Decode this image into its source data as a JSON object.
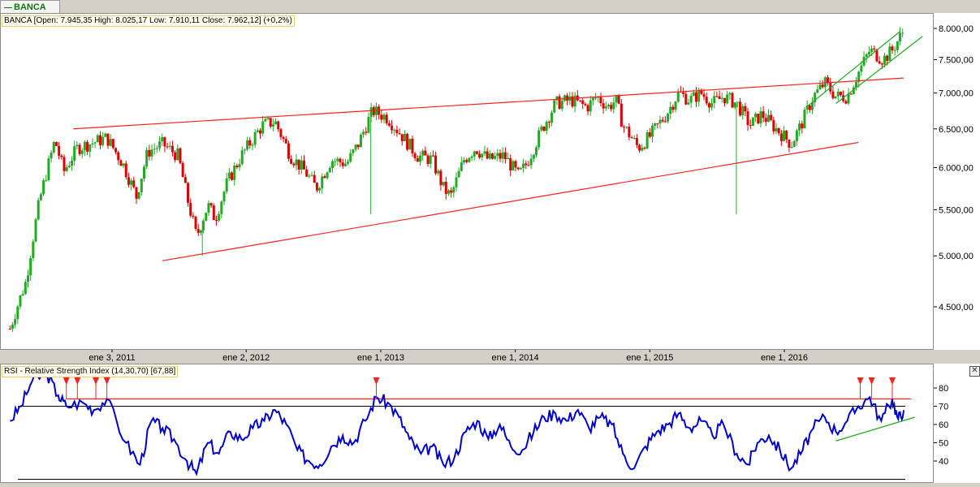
{
  "tab": {
    "label": "BANCA"
  },
  "price_info": "BANCA [Open: 7.945,35  High: 8.025,17  Low: 7.910,11  Close: 7.962,12] (+0,2%)",
  "rsi_info": "RSI - Relative Strength Index (14,30,70) [67,88]",
  "colors": {
    "up": "#22aa22",
    "down": "#dd0000",
    "trend": "#ff2020",
    "support": "#22aa22",
    "rsi": "#0000cc"
  },
  "chart_data": [
    {
      "type": "candlestick",
      "series": [
        {
          "name": "BANCA"
        }
      ],
      "ylim": [
        4200,
        8200
      ],
      "y_ticks": [
        {
          "value": 8000,
          "label": "8.000,00"
        },
        {
          "value": 7500,
          "label": "7.500,00"
        },
        {
          "value": 7000,
          "label": "7.000,00"
        },
        {
          "value": 6500,
          "label": "6.500,00"
        },
        {
          "value": 6000,
          "label": "6.000,00"
        },
        {
          "value": 5500,
          "label": "5.500,00"
        },
        {
          "value": 5000,
          "label": "5.000,00"
        },
        {
          "value": 4500,
          "label": "4.500,00"
        }
      ],
      "x_ticks": [
        {
          "date": "2011-01-03",
          "label": "ene 3, 2011"
        },
        {
          "date": "2012-01-02",
          "label": "ene 2, 2012"
        },
        {
          "date": "2013-01-01",
          "label": "ene 1, 2013"
        },
        {
          "date": "2014-01-01",
          "label": "ene 1, 2014"
        },
        {
          "date": "2015-01-01",
          "label": "ene 1, 2015"
        },
        {
          "date": "2016-01-01",
          "label": "ene 1, 2016"
        }
      ],
      "close_path": [
        [
          "2010-04-01",
          4300
        ],
        [
          "2010-05-15",
          4750
        ],
        [
          "2010-06-20",
          5600
        ],
        [
          "2010-08-01",
          6350
        ],
        [
          "2010-08-25",
          5950
        ],
        [
          "2010-10-01",
          6250
        ],
        [
          "2010-12-20",
          6380
        ],
        [
          "2011-02-01",
          6050
        ],
        [
          "2011-03-10",
          5650
        ],
        [
          "2011-04-10",
          6200
        ],
        [
          "2011-05-20",
          6300
        ],
        [
          "2011-07-01",
          6150
        ],
        [
          "2011-07-25",
          5650
        ],
        [
          "2011-08-20",
          5200
        ],
        [
          "2011-09-20",
          5550
        ],
        [
          "2011-10-10",
          5400
        ],
        [
          "2011-11-10",
          5800
        ],
        [
          "2011-12-20",
          6150
        ],
        [
          "2012-02-15",
          6550
        ],
        [
          "2012-03-20",
          6600
        ],
        [
          "2012-05-01",
          6150
        ],
        [
          "2012-06-10",
          5950
        ],
        [
          "2012-07-10",
          5750
        ],
        [
          "2012-08-20",
          6100
        ],
        [
          "2012-10-01",
          6050
        ],
        [
          "2012-11-01",
          6300
        ],
        [
          "2012-12-10",
          6750
        ],
        [
          "2013-01-20",
          6650
        ],
        [
          "2013-03-01",
          6400
        ],
        [
          "2013-04-10",
          6150
        ],
        [
          "2013-05-20",
          6100
        ],
        [
          "2013-06-20",
          5750
        ],
        [
          "2013-07-10",
          5650
        ],
        [
          "2013-08-15",
          6100
        ],
        [
          "2013-09-15",
          6250
        ],
        [
          "2013-10-20",
          6100
        ],
        [
          "2013-12-01",
          6150
        ],
        [
          "2014-01-10",
          5900
        ],
        [
          "2014-02-01",
          6050
        ],
        [
          "2014-03-15",
          6500
        ],
        [
          "2014-04-20",
          6850
        ],
        [
          "2014-06-01",
          6900
        ],
        [
          "2014-07-15",
          6800
        ],
        [
          "2014-08-10",
          6950
        ],
        [
          "2014-09-10",
          6800
        ],
        [
          "2014-10-01",
          6900
        ],
        [
          "2014-10-20",
          6550
        ],
        [
          "2014-12-01",
          6250
        ],
        [
          "2015-01-01",
          6400
        ],
        [
          "2015-02-15",
          6700
        ],
        [
          "2015-03-20",
          7000
        ],
        [
          "2015-04-20",
          6900
        ],
        [
          "2015-05-20",
          7000
        ],
        [
          "2015-06-20",
          6850
        ],
        [
          "2015-07-20",
          6950
        ],
        [
          "2015-08-25",
          6850
        ],
        [
          "2015-09-30",
          6550
        ],
        [
          "2015-11-01",
          6700
        ],
        [
          "2015-12-10",
          6500
        ],
        [
          "2016-01-20",
          6300
        ],
        [
          "2016-02-15",
          6550
        ],
        [
          "2016-03-20",
          6950
        ],
        [
          "2016-04-20",
          7150
        ],
        [
          "2016-05-20",
          6950
        ],
        [
          "2016-06-20",
          6950
        ],
        [
          "2016-07-20",
          7300
        ],
        [
          "2016-08-20",
          7650
        ],
        [
          "2016-09-25",
          7500
        ],
        [
          "2016-10-20",
          7650
        ],
        [
          "2016-11-20",
          7962
        ]
      ],
      "spikes": [
        {
          "date": "2011-09-05",
          "low": 5000
        },
        {
          "date": "2012-12-05",
          "low": 5450
        },
        {
          "date": "2015-08-24",
          "low": 5450
        }
      ],
      "trend_lines": [
        {
          "name": "resistance",
          "from": [
            "2010-09-20",
            6500
          ],
          "to": [
            "2016-11-20",
            7220
          ]
        },
        {
          "name": "support",
          "from": [
            "2011-05-20",
            4950
          ],
          "to": [
            "2016-07-20",
            6320
          ]
        },
        {
          "name": "channel-upper",
          "from": [
            "2016-03-01",
            6800
          ],
          "to": [
            "2016-11-10",
            7950
          ]
        },
        {
          "name": "channel-lower",
          "from": [
            "2016-05-20",
            6850
          ],
          "to": [
            "2017-01-10",
            7870
          ]
        }
      ]
    },
    {
      "type": "line",
      "series": [
        {
          "name": "RSI",
          "period": 14
        }
      ],
      "ylim": [
        30,
        90
      ],
      "y_ticks": [
        80,
        70,
        60,
        50,
        40
      ],
      "levels": [
        30,
        70
      ],
      "value": 67.88,
      "points": [
        [
          "2010-04-01",
          62
        ],
        [
          "2010-05-01",
          70
        ],
        [
          "2010-06-01",
          84
        ],
        [
          "2010-07-10",
          88
        ],
        [
          "2010-08-10",
          76
        ],
        [
          "2010-09-01",
          70
        ],
        [
          "2010-10-15",
          72
        ],
        [
          "2010-11-15",
          68
        ],
        [
          "2010-12-20",
          74
        ],
        [
          "2011-02-10",
          50
        ],
        [
          "2011-03-20",
          38
        ],
        [
          "2011-04-20",
          62
        ],
        [
          "2011-05-20",
          58
        ],
        [
          "2011-06-20",
          52
        ],
        [
          "2011-07-25",
          40
        ],
        [
          "2011-08-20",
          33
        ],
        [
          "2011-09-20",
          50
        ],
        [
          "2011-10-20",
          44
        ],
        [
          "2011-11-20",
          56
        ],
        [
          "2011-12-20",
          52
        ],
        [
          "2012-01-20",
          58
        ],
        [
          "2012-02-20",
          62
        ],
        [
          "2012-03-20",
          68
        ],
        [
          "2012-04-20",
          60
        ],
        [
          "2012-05-20",
          46
        ],
        [
          "2012-06-20",
          40
        ],
        [
          "2012-07-20",
          38
        ],
        [
          "2012-08-20",
          48
        ],
        [
          "2012-09-20",
          54
        ],
        [
          "2012-10-20",
          50
        ],
        [
          "2012-11-20",
          62
        ],
        [
          "2012-12-20",
          75
        ],
        [
          "2013-01-20",
          72
        ],
        [
          "2013-02-20",
          64
        ],
        [
          "2013-03-20",
          52
        ],
        [
          "2013-04-20",
          44
        ],
        [
          "2013-05-20",
          48
        ],
        [
          "2013-06-20",
          38
        ],
        [
          "2013-07-20",
          42
        ],
        [
          "2013-08-20",
          56
        ],
        [
          "2013-09-20",
          62
        ],
        [
          "2013-10-20",
          52
        ],
        [
          "2013-11-20",
          60
        ],
        [
          "2013-12-20",
          48
        ],
        [
          "2014-01-20",
          46
        ],
        [
          "2014-02-20",
          56
        ],
        [
          "2014-03-20",
          64
        ],
        [
          "2014-04-20",
          66
        ],
        [
          "2014-05-20",
          62
        ],
        [
          "2014-06-20",
          68
        ],
        [
          "2014-07-20",
          58
        ],
        [
          "2014-08-20",
          64
        ],
        [
          "2014-09-20",
          60
        ],
        [
          "2014-10-20",
          44
        ],
        [
          "2014-11-20",
          36
        ],
        [
          "2014-12-20",
          48
        ],
        [
          "2015-01-20",
          56
        ],
        [
          "2015-02-20",
          60
        ],
        [
          "2015-03-20",
          66
        ],
        [
          "2015-04-20",
          58
        ],
        [
          "2015-05-20",
          62
        ],
        [
          "2015-06-20",
          54
        ],
        [
          "2015-07-20",
          60
        ],
        [
          "2015-08-25",
          44
        ],
        [
          "2015-09-25",
          38
        ],
        [
          "2015-10-20",
          50
        ],
        [
          "2015-11-20",
          54
        ],
        [
          "2015-12-20",
          46
        ],
        [
          "2016-01-20",
          36
        ],
        [
          "2016-02-20",
          46
        ],
        [
          "2016-03-20",
          58
        ],
        [
          "2016-04-20",
          64
        ],
        [
          "2016-05-20",
          56
        ],
        [
          "2016-06-20",
          62
        ],
        [
          "2016-07-20",
          70
        ],
        [
          "2016-08-20",
          75
        ],
        [
          "2016-09-20",
          62
        ],
        [
          "2016-10-20",
          74
        ],
        [
          "2016-11-05",
          63
        ],
        [
          "2016-11-20",
          67.88
        ]
      ],
      "lines": [
        {
          "name": "rsi-resistance",
          "from": [
            "2010-09-01",
            74
          ],
          "to": [
            "2016-12-10",
            74
          ]
        },
        {
          "name": "rsi-support",
          "from": [
            "2016-05-20",
            51
          ],
          "to": [
            "2016-12-20",
            64
          ]
        }
      ],
      "markers": [
        "2010-09-01",
        "2010-10-01",
        "2010-11-20",
        "2010-12-20",
        "2012-12-20",
        "2016-07-25",
        "2016-08-25",
        "2016-10-20"
      ]
    }
  ]
}
